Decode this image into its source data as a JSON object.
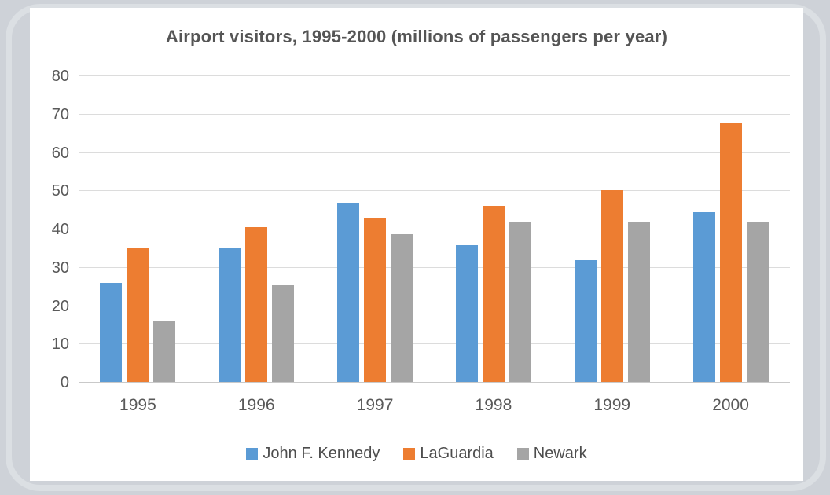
{
  "chart_data": {
    "type": "bar",
    "title": "Airport visitors, 1995-2000 (millions of passengers per year)",
    "categories": [
      "1995",
      "1996",
      "1997",
      "1998",
      "1999",
      "2000"
    ],
    "series": [
      {
        "name": "John F. Kennedy",
        "color": "#5B9BD5",
        "values": [
          26,
          35.3,
          47,
          36,
          32,
          44.5
        ]
      },
      {
        "name": "LaGuardia",
        "color": "#ED7D31",
        "values": [
          35.3,
          40.6,
          43,
          46.2,
          50.2,
          68
        ]
      },
      {
        "name": "Newark",
        "color": "#A5A5A5",
        "values": [
          16,
          25.5,
          38.8,
          42,
          42,
          42
        ]
      }
    ],
    "xlabel": "",
    "ylabel": "",
    "ylim": [
      0,
      80
    ],
    "yticks": [
      0,
      10,
      20,
      30,
      40,
      50,
      60,
      70,
      80
    ],
    "grid": true,
    "legend_position": "bottom"
  },
  "colors": {
    "background": "#ced2d8",
    "frame_band": "#dbdfe3",
    "card": "#ffffff",
    "gridline": "#dcdcdc",
    "axis_line": "#c9c9c9",
    "title_text": "#555555",
    "tick_text": "#595959",
    "legend_text": "#4d4d4d"
  }
}
